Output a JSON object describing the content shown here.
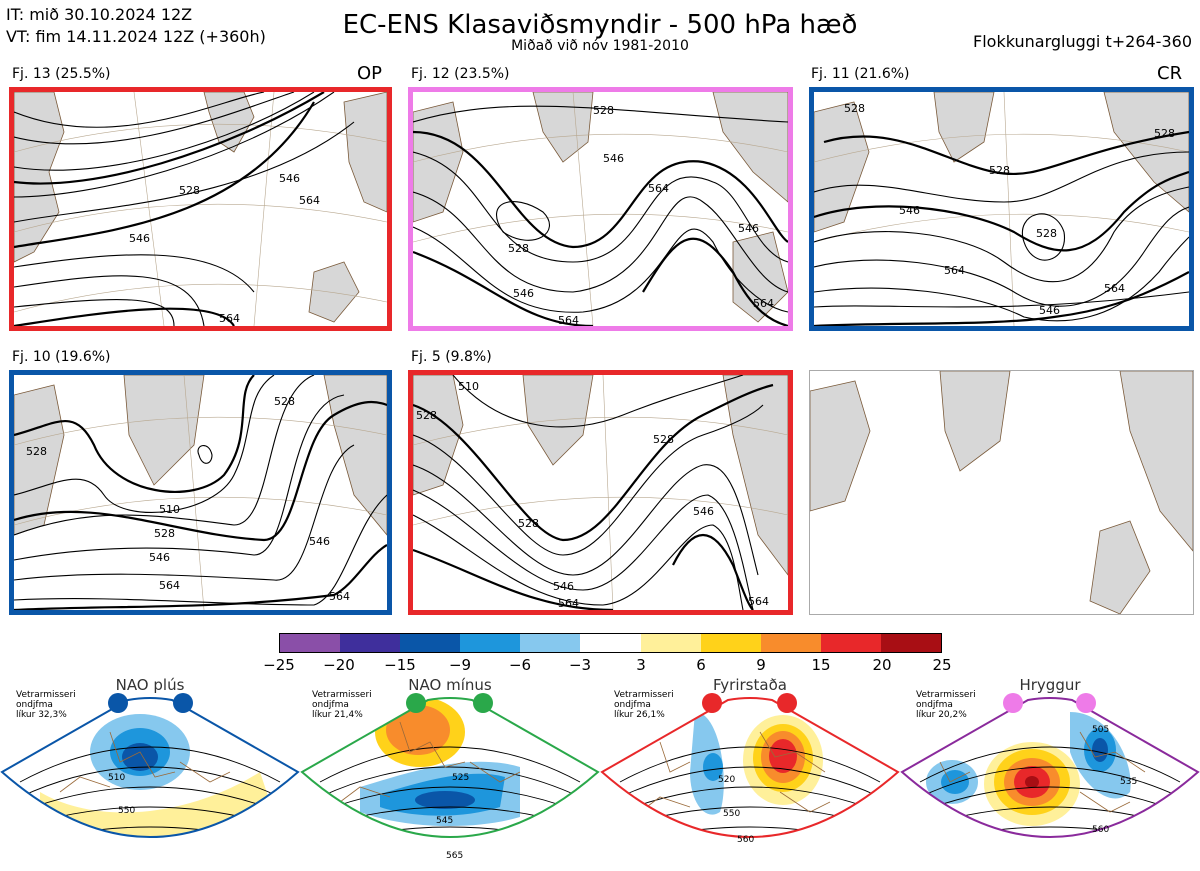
{
  "header": {
    "it_line": "IT: mið 30.10.2024 12Z",
    "vt_line": "VT: fim 14.11.2024 12Z  (+360h)",
    "title": "EC-ENS Klasaviðsmyndir - 500 hPa hæð",
    "subtitle": "Miðað við nóv 1981-2010",
    "window": "Flokkunargluggi t+264-360"
  },
  "clusters": [
    {
      "label": "Fj. 13 (25.5%)",
      "tag": "OP",
      "border": "#e8282a",
      "contour_labels": [
        "528",
        "546",
        "546",
        "564",
        "564"
      ]
    },
    {
      "label": "Fj. 12 (23.5%)",
      "tag": "",
      "border": "#ee7be8",
      "contour_labels": [
        "528",
        "546",
        "564",
        "528",
        "546",
        "564",
        "546",
        "564"
      ]
    },
    {
      "label": "Fj. 11 (21.6%)",
      "tag": "CR",
      "border": "#0a56a8",
      "contour_labels": [
        "528",
        "528",
        "546",
        "528",
        "564",
        "546",
        "564",
        "528"
      ]
    },
    {
      "label": "Fj. 10 (19.6%)",
      "tag": "",
      "border": "#0a56a8",
      "contour_labels": [
        "528",
        "528",
        "510",
        "528",
        "546",
        "564",
        "546",
        "564"
      ]
    },
    {
      "label": "Fj. 5 (9.8%)",
      "tag": "",
      "border": "#e8282a",
      "contour_labels": [
        "510",
        "528",
        "528",
        "528",
        "546",
        "546",
        "564",
        "564"
      ]
    }
  ],
  "colorbar": {
    "ticks": [
      "−25",
      "−20",
      "−15",
      "−9",
      "−6",
      "−3",
      "3",
      "6",
      "9",
      "15",
      "20",
      "25"
    ],
    "colors": [
      "#8a4fa8",
      "#3f2f9c",
      "#0a56a8",
      "#1e96dc",
      "#86c8ee",
      "#ffffff",
      "#fff09a",
      "#ffd21a",
      "#f88c2c",
      "#e8282a",
      "#a80e14"
    ]
  },
  "regimes": [
    {
      "title": "NAO plús",
      "note": [
        "Vetrarmisseri",
        "ondjfma",
        "líkur 32,3%"
      ],
      "border": "#0a56a8",
      "dot_color": "#0a56a8",
      "contours": [
        "510",
        "550"
      ]
    },
    {
      "title": "NAO mínus",
      "note": [
        "Vetrarmisseri",
        "ondjfma",
        "líkur 21,4%"
      ],
      "border": "#2aa84a",
      "dot_color": "#2aa84a",
      "contours": [
        "525",
        "545",
        "565"
      ]
    },
    {
      "title": "Fyrirstaða",
      "note": [
        "Vetrarmisseri",
        "ondjfma",
        "líkur 26,1%"
      ],
      "border": "#e8282a",
      "dot_color": "#e8282a",
      "contours": [
        "520",
        "550",
        "560"
      ]
    },
    {
      "title": "Hryggur",
      "note": [
        "Vetrarmisseri",
        "ondjfma",
        "líkur 20,2%"
      ],
      "border": "#8a2a9c",
      "dot_color": "#ee7be8",
      "contours": [
        "505",
        "535",
        "560"
      ]
    }
  ]
}
